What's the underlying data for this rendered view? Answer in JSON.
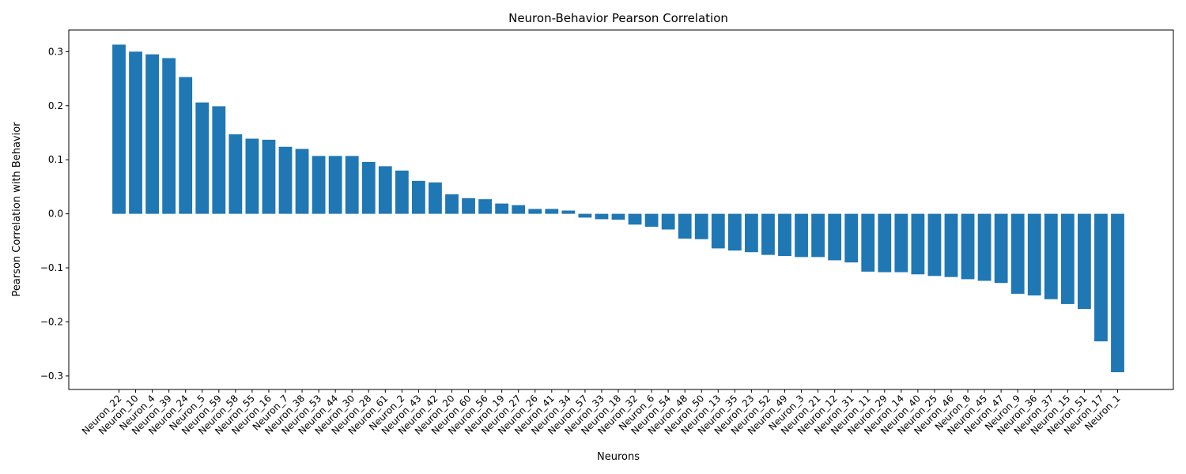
{
  "chart_data": {
    "type": "bar",
    "title": "Neuron-Behavior Pearson Correlation",
    "xlabel": "Neurons",
    "ylabel": "Pearson Correlation with Behavior",
    "ylim": [
      -0.325,
      0.34
    ],
    "yticks": [
      -0.3,
      -0.2,
      -0.1,
      0.0,
      0.1,
      0.2,
      0.3
    ],
    "ytick_labels": [
      "−0.3",
      "−0.2",
      "−0.1",
      "0.0",
      "0.1",
      "0.2",
      "0.3"
    ],
    "bar_color": "#1f77b4",
    "grid": false,
    "categories": [
      "Neuron_22",
      "Neuron_10",
      "Neuron_4",
      "Neuron_39",
      "Neuron_24",
      "Neuron_5",
      "Neuron_59",
      "Neuron_58",
      "Neuron_55",
      "Neuron_16",
      "Neuron_7",
      "Neuron_38",
      "Neuron_53",
      "Neuron_44",
      "Neuron_30",
      "Neuron_28",
      "Neuron_61",
      "Neuron_2",
      "Neuron_43",
      "Neuron_42",
      "Neuron_20",
      "Neuron_60",
      "Neuron_56",
      "Neuron_19",
      "Neuron_27",
      "Neuron_26",
      "Neuron_41",
      "Neuron_34",
      "Neuron_57",
      "Neuron_33",
      "Neuron_18",
      "Neuron_32",
      "Neuron_6",
      "Neuron_54",
      "Neuron_48",
      "Neuron_50",
      "Neuron_13",
      "Neuron_35",
      "Neuron_23",
      "Neuron_52",
      "Neuron_49",
      "Neuron_3",
      "Neuron_21",
      "Neuron_12",
      "Neuron_31",
      "Neuron_11",
      "Neuron_29",
      "Neuron_14",
      "Neuron_40",
      "Neuron_25",
      "Neuron_46",
      "Neuron_8",
      "Neuron_45",
      "Neuron_47",
      "Neuron_9",
      "Neuron_36",
      "Neuron_37",
      "Neuron_15",
      "Neuron_51",
      "Neuron_17",
      "Neuron_1"
    ],
    "values": [
      0.313,
      0.3,
      0.295,
      0.288,
      0.253,
      0.206,
      0.199,
      0.147,
      0.139,
      0.137,
      0.124,
      0.12,
      0.107,
      0.107,
      0.107,
      0.096,
      0.088,
      0.08,
      0.061,
      0.058,
      0.036,
      0.029,
      0.027,
      0.019,
      0.016,
      0.009,
      0.009,
      0.006,
      -0.007,
      -0.01,
      -0.011,
      -0.02,
      -0.024,
      -0.029,
      -0.046,
      -0.047,
      -0.064,
      -0.068,
      -0.071,
      -0.076,
      -0.078,
      -0.08,
      -0.08,
      -0.086,
      -0.09,
      -0.107,
      -0.108,
      -0.108,
      -0.112,
      -0.115,
      -0.117,
      -0.121,
      -0.124,
      -0.128,
      -0.148,
      -0.151,
      -0.158,
      -0.167,
      -0.176,
      -0.236,
      -0.293
    ]
  }
}
